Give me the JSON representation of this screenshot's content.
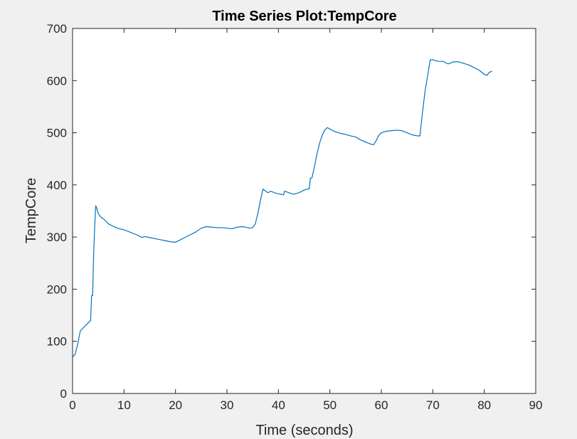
{
  "chart_data": {
    "type": "line",
    "title": "Time Series Plot:TempCore",
    "xlabel": "Time (seconds)",
    "ylabel": "TempCore",
    "xlim": [
      0,
      90
    ],
    "ylim": [
      0,
      700
    ],
    "xticks": [
      0,
      10,
      20,
      30,
      40,
      50,
      60,
      70,
      80,
      90
    ],
    "yticks": [
      0,
      100,
      200,
      300,
      400,
      500,
      600,
      700
    ],
    "grid": false,
    "colors": {
      "line": "#0072bd",
      "plot_background": "#ffffff",
      "figure_background": "#f0f0f0",
      "axis": "#262626"
    },
    "series": [
      {
        "x": [
          0,
          0.5,
          1,
          1.5,
          2,
          2.5,
          3,
          3.5,
          3.7,
          3.9,
          4.1,
          4.3,
          4.5,
          4.7,
          5,
          5.5,
          6,
          7,
          8,
          9,
          10,
          11,
          12,
          13,
          13.5,
          14,
          15,
          16,
          17,
          18,
          19,
          20,
          21,
          22,
          23,
          24,
          25,
          26,
          27,
          28,
          29,
          30,
          31,
          32,
          33,
          34,
          34.5,
          35,
          35.5,
          36,
          36.5,
          37,
          37.5,
          38,
          38.5,
          39,
          39.5,
          40,
          40.5,
          41,
          41.2,
          41.5,
          42,
          43,
          44,
          45,
          46,
          46.2,
          46.5,
          47,
          47.5,
          48,
          48.5,
          49,
          49.5,
          50,
          51,
          52,
          53,
          54,
          55,
          56,
          57,
          58,
          58.5,
          59,
          59.5,
          60,
          61,
          62,
          63,
          64,
          65,
          66,
          67,
          67.5,
          68,
          68.5,
          69,
          69.5,
          70,
          71,
          72,
          72.5,
          73,
          74,
          75,
          76,
          77,
          78,
          79,
          80,
          80.5,
          81,
          81.5
        ],
        "y": [
          70,
          75,
          95,
          120,
          125,
          130,
          135,
          140,
          188,
          188,
          270,
          320,
          360,
          355,
          345,
          338,
          335,
          325,
          320,
          316,
          314,
          310,
          306,
          302,
          299,
          301,
          299,
          297,
          295,
          293,
          291,
          290,
          295,
          300,
          305,
          310,
          317,
          320,
          319,
          318,
          318,
          317,
          316,
          319,
          320,
          318,
          317,
          318,
          325,
          345,
          370,
          392,
          388,
          385,
          388,
          386,
          384,
          383,
          382,
          381,
          388,
          387,
          385,
          382,
          385,
          390,
          393,
          413,
          413,
          435,
          460,
          480,
          495,
          505,
          510,
          507,
          502,
          499,
          497,
          494,
          492,
          486,
          482,
          478,
          477,
          485,
          495,
          500,
          503,
          504,
          505,
          504,
          500,
          496,
          494,
          494,
          540,
          580,
          610,
          640,
          640,
          637,
          637,
          634,
          632,
          636,
          636,
          633,
          630,
          625,
          620,
          612,
          610,
          616,
          618
        ]
      }
    ]
  }
}
